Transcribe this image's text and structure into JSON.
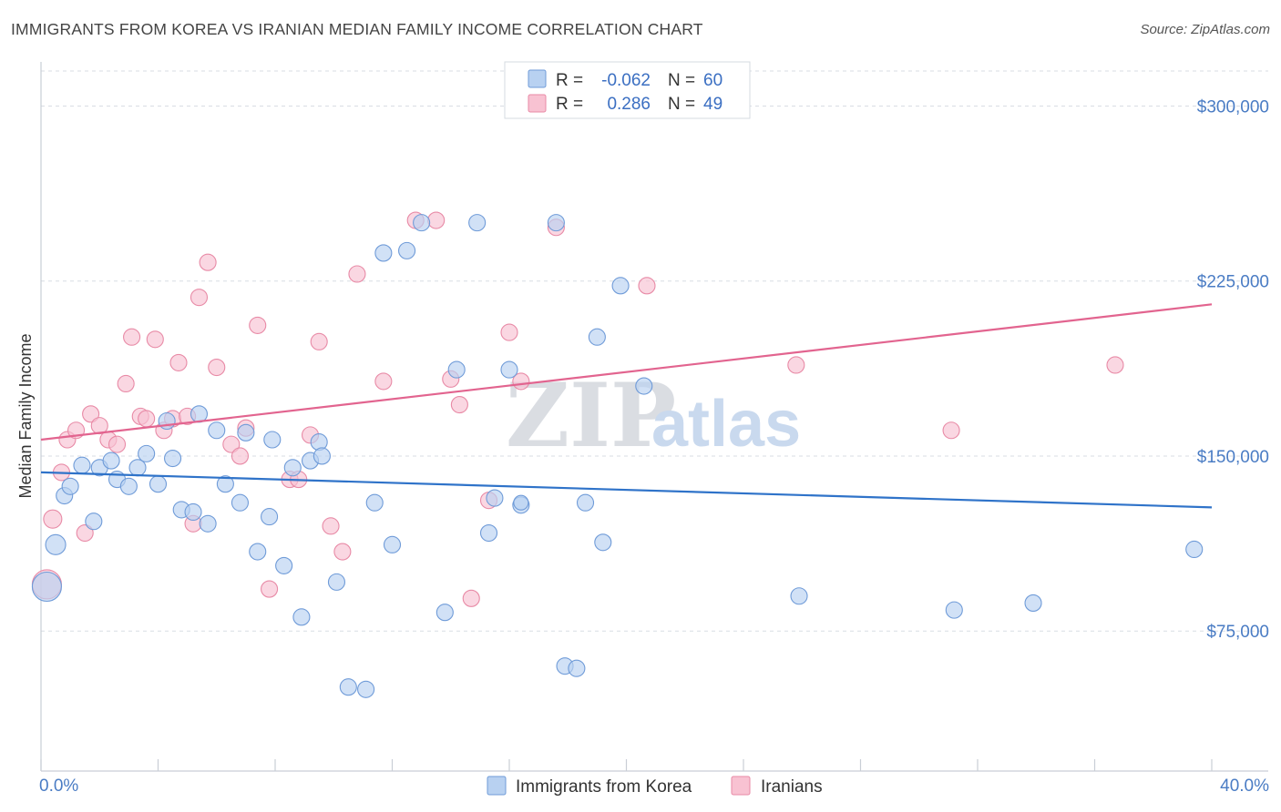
{
  "header": {
    "title": "IMMIGRANTS FROM KOREA VS IRANIAN MEDIAN FAMILY INCOME CORRELATION CHART",
    "source": "Source: ZipAtlas.com"
  },
  "watermark": {
    "zip": "ZIP",
    "atlas": "atlas"
  },
  "legend_top": [
    {
      "r_label": "R =",
      "r_value": "-0.062",
      "n_label": "N =",
      "n_value": "60"
    },
    {
      "r_label": "R =",
      "r_value": "0.286",
      "n_label": "N =",
      "n_value": "49"
    }
  ],
  "legend_bottom": [
    "Immigrants from Korea",
    "Iranians"
  ],
  "colors": {
    "blue_fill": "#b8d1f1",
    "blue_stroke": "#6f9bd8",
    "blue_line": "#2f73c9",
    "pink_fill": "#f8c2d2",
    "pink_stroke": "#e88aa6",
    "pink_line": "#e2648f",
    "grid": "#d8dde3",
    "tick_text": "#4a7cc4"
  },
  "chart_data": {
    "type": "scatter",
    "xlabel": "",
    "ylabel": "Median Family Income",
    "xlim": [
      0,
      40
    ],
    "ylim": [
      15000,
      315000
    ],
    "x_tick_labels": [
      "0.0%",
      "40.0%"
    ],
    "y_ticks": [
      {
        "value": 75000,
        "label": "$75,000"
      },
      {
        "value": 150000,
        "label": "$150,000"
      },
      {
        "value": 225000,
        "label": "$225,000"
      },
      {
        "value": 300000,
        "label": "$300,000"
      }
    ],
    "grid": true,
    "legend_position": "top-center",
    "series": [
      {
        "name": "Immigrants from Korea",
        "color": "#6f9bd8",
        "trend": [
          [
            0,
            143000
          ],
          [
            40,
            128000
          ]
        ],
        "points": [
          [
            0.2,
            94000,
            16
          ],
          [
            0.5,
            112000,
            11
          ],
          [
            0.8,
            133000,
            9
          ],
          [
            1.0,
            137000,
            9
          ],
          [
            1.4,
            146000,
            9
          ],
          [
            1.8,
            122000,
            9
          ],
          [
            2.0,
            145000,
            9
          ],
          [
            2.4,
            148000,
            9
          ],
          [
            2.6,
            140000,
            9
          ],
          [
            3.0,
            137000,
            9
          ],
          [
            3.3,
            145000,
            9
          ],
          [
            3.6,
            151000,
            9
          ],
          [
            4.0,
            138000,
            9
          ],
          [
            4.3,
            165000,
            9
          ],
          [
            4.5,
            149000,
            9
          ],
          [
            4.8,
            127000,
            9
          ],
          [
            5.2,
            126000,
            9
          ],
          [
            5.4,
            168000,
            9
          ],
          [
            5.7,
            121000,
            9
          ],
          [
            6.0,
            161000,
            9
          ],
          [
            6.3,
            138000,
            9
          ],
          [
            6.8,
            130000,
            9
          ],
          [
            7.0,
            160000,
            9
          ],
          [
            7.4,
            109000,
            9
          ],
          [
            7.8,
            124000,
            9
          ],
          [
            7.9,
            157000,
            9
          ],
          [
            8.3,
            103000,
            9
          ],
          [
            8.6,
            145000,
            9
          ],
          [
            8.9,
            81000,
            9
          ],
          [
            9.2,
            148000,
            9
          ],
          [
            9.5,
            156000,
            9
          ],
          [
            9.6,
            150000,
            9
          ],
          [
            10.1,
            96000,
            9
          ],
          [
            10.5,
            51000,
            9
          ],
          [
            11.1,
            50000,
            9
          ],
          [
            11.4,
            130000,
            9
          ],
          [
            11.7,
            237000,
            9
          ],
          [
            12.0,
            112000,
            9
          ],
          [
            12.5,
            238000,
            9
          ],
          [
            13.0,
            250000,
            9
          ],
          [
            13.8,
            83000,
            9
          ],
          [
            14.2,
            187000,
            9
          ],
          [
            14.9,
            250000,
            9
          ],
          [
            15.3,
            117000,
            9
          ],
          [
            15.5,
            132000,
            9
          ],
          [
            16.0,
            187000,
            9
          ],
          [
            16.4,
            129000,
            9
          ],
          [
            17.6,
            250000,
            9
          ],
          [
            17.9,
            60000,
            9
          ],
          [
            18.3,
            59000,
            9
          ],
          [
            18.6,
            130000,
            9
          ],
          [
            19.0,
            201000,
            9
          ],
          [
            19.2,
            113000,
            9
          ],
          [
            19.8,
            223000,
            9
          ],
          [
            20.6,
            180000,
            9
          ],
          [
            25.9,
            90000,
            9
          ],
          [
            31.2,
            84000,
            9
          ],
          [
            33.9,
            87000,
            9
          ],
          [
            39.4,
            110000,
            9
          ],
          [
            16.4,
            130000,
            8
          ]
        ]
      },
      {
        "name": "Iranians",
        "color": "#e88aa6",
        "trend": [
          [
            0,
            157000
          ],
          [
            40,
            215000
          ]
        ],
        "points": [
          [
            0.2,
            95000,
            16
          ],
          [
            0.4,
            123000,
            10
          ],
          [
            0.7,
            143000,
            9
          ],
          [
            0.9,
            157000,
            9
          ],
          [
            1.2,
            161000,
            9
          ],
          [
            1.5,
            117000,
            9
          ],
          [
            1.7,
            168000,
            9
          ],
          [
            2.0,
            163000,
            9
          ],
          [
            2.3,
            157000,
            9
          ],
          [
            2.6,
            155000,
            9
          ],
          [
            2.9,
            181000,
            9
          ],
          [
            3.1,
            201000,
            9
          ],
          [
            3.4,
            167000,
            9
          ],
          [
            3.6,
            166000,
            9
          ],
          [
            3.9,
            200000,
            9
          ],
          [
            4.2,
            161000,
            9
          ],
          [
            4.5,
            166000,
            9
          ],
          [
            4.7,
            190000,
            9
          ],
          [
            5.0,
            167000,
            9
          ],
          [
            5.2,
            121000,
            9
          ],
          [
            5.4,
            218000,
            9
          ],
          [
            5.7,
            233000,
            9
          ],
          [
            6.0,
            188000,
            9
          ],
          [
            6.5,
            155000,
            9
          ],
          [
            6.8,
            150000,
            9
          ],
          [
            7.0,
            162000,
            9
          ],
          [
            7.4,
            206000,
            9
          ],
          [
            7.8,
            93000,
            9
          ],
          [
            8.5,
            140000,
            9
          ],
          [
            8.8,
            140000,
            9
          ],
          [
            9.2,
            159000,
            9
          ],
          [
            9.5,
            199000,
            9
          ],
          [
            9.9,
            120000,
            9
          ],
          [
            10.3,
            109000,
            9
          ],
          [
            10.8,
            228000,
            9
          ],
          [
            11.7,
            182000,
            9
          ],
          [
            12.8,
            251000,
            9
          ],
          [
            13.5,
            251000,
            9
          ],
          [
            14.0,
            183000,
            9
          ],
          [
            14.3,
            172000,
            9
          ],
          [
            14.7,
            89000,
            9
          ],
          [
            15.3,
            131000,
            9
          ],
          [
            16.0,
            203000,
            9
          ],
          [
            16.4,
            182000,
            9
          ],
          [
            17.6,
            248000,
            9
          ],
          [
            20.7,
            223000,
            9
          ],
          [
            25.8,
            189000,
            9
          ],
          [
            31.1,
            161000,
            9
          ],
          [
            36.7,
            189000,
            9
          ]
        ]
      }
    ]
  }
}
